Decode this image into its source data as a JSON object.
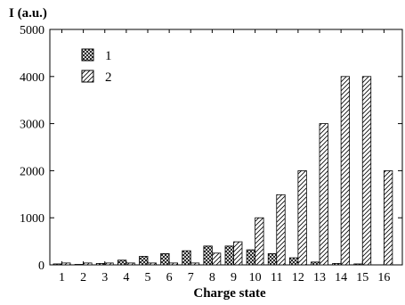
{
  "chart_data": {
    "type": "bar",
    "ylabel": "I (a.u.)",
    "xlabel": "Charge state",
    "categories": [
      "1",
      "2",
      "3",
      "4",
      "5",
      "6",
      "7",
      "8",
      "9",
      "10",
      "11",
      "12",
      "13",
      "14",
      "15",
      "16"
    ],
    "yticks": [
      "0",
      "1000",
      "2000",
      "3000",
      "4000",
      "5000"
    ],
    "ylim": [
      0,
      5000
    ],
    "grid": false,
    "legend_placement": "top-left",
    "series": [
      {
        "name": "1",
        "pattern": "crosshatch",
        "values": [
          20,
          10,
          30,
          100,
          180,
          240,
          300,
          400,
          400,
          320,
          240,
          150,
          60,
          30,
          20,
          0
        ]
      },
      {
        "name": "2",
        "pattern": "diagonal-hatch",
        "values": [
          40,
          40,
          40,
          40,
          40,
          40,
          40,
          250,
          490,
          1000,
          1490,
          2000,
          3000,
          4000,
          4000,
          2000
        ]
      }
    ]
  }
}
